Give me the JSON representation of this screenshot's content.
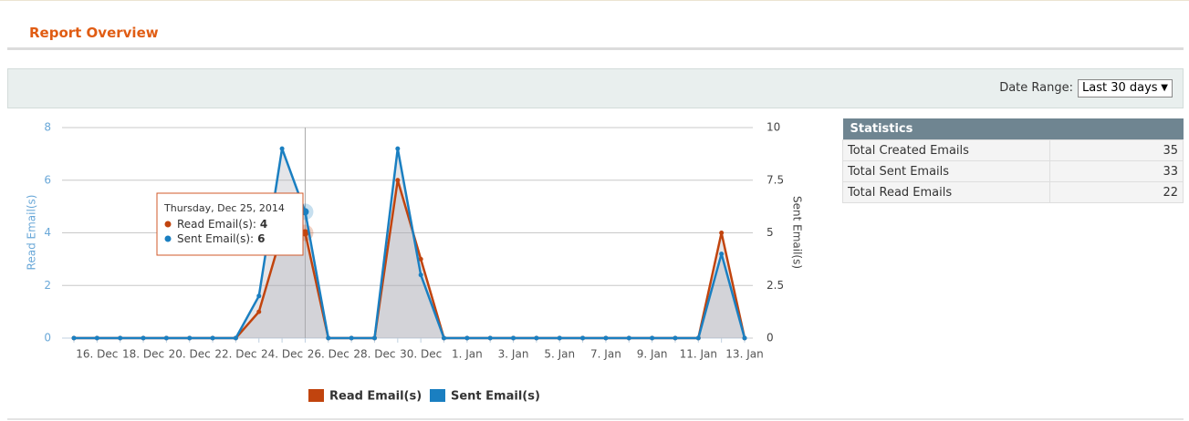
{
  "header": {
    "title": "Report Overview"
  },
  "filter": {
    "label": "Date Range:",
    "value": "Last 30 days"
  },
  "chart_data": {
    "type": "line",
    "ylabel": "Read Email(s)",
    "y2label": "Sent Email(s)",
    "categories": [
      null,
      "16. Dec",
      null,
      "18. Dec",
      null,
      "20. Dec",
      null,
      "22. Dec",
      null,
      "24. Dec",
      null,
      "26. Dec",
      null,
      "28. Dec",
      null,
      "30. Dec",
      null,
      "1. Jan",
      null,
      "3. Jan",
      null,
      "5. Jan",
      null,
      "7. Jan",
      null,
      "9. Jan",
      null,
      "11. Jan",
      null,
      "13. Jan"
    ],
    "series": [
      {
        "name": "Read Email(s)",
        "color": "#c1440e",
        "values": [
          0,
          0,
          0,
          0,
          0,
          0,
          0,
          0,
          1,
          4,
          4,
          0,
          0,
          0,
          6,
          3,
          0,
          0,
          0,
          0,
          0,
          0,
          0,
          0,
          0,
          0,
          0,
          0,
          4,
          0
        ]
      },
      {
        "name": "Sent Email(s)",
        "color": "#1a7fc1",
        "axis": "y2",
        "values": [
          0,
          0,
          0,
          0,
          0,
          0,
          0,
          0,
          2,
          9,
          6,
          0,
          0,
          0,
          9,
          3,
          0,
          0,
          0,
          0,
          0,
          0,
          0,
          0,
          0,
          0,
          0,
          0,
          4,
          0
        ]
      }
    ],
    "ylim": [
      0,
      8
    ],
    "yticks": [
      0,
      2,
      4,
      6,
      8
    ],
    "y2lim": [
      0,
      10
    ],
    "y2ticks": [
      0,
      2.5,
      5,
      7.5,
      10
    ],
    "grid": true,
    "legend": "bottom",
    "tooltip": {
      "title": "Thursday, Dec 25, 2014",
      "rows": [
        {
          "label": "Read Email(s):",
          "value": 4
        },
        {
          "label": "Sent Email(s):",
          "value": 6
        }
      ]
    }
  },
  "statistics": {
    "title": "Statistics",
    "rows": [
      [
        "Total Created Emails",
        35
      ],
      [
        "Total Sent Emails",
        33
      ],
      [
        "Total Read Emails",
        22
      ]
    ]
  }
}
